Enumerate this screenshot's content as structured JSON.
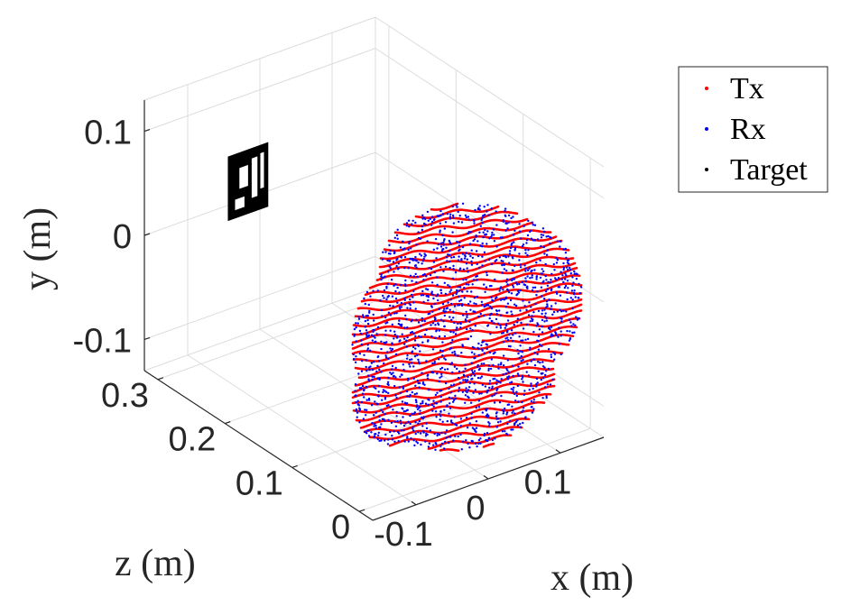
{
  "chart_data": {
    "type": "scatter",
    "dimensions": "3d",
    "xlabel": "x (m)",
    "ylabel": "y (m)",
    "zlabel": "z (m)",
    "xlim": [
      -0.16,
      0.16
    ],
    "ylim": [
      -0.13,
      0.13
    ],
    "zlim": [
      -0.02,
      0.32
    ],
    "x_ticks": [
      "-0.1",
      "0",
      "0.1"
    ],
    "y_ticks": [
      "0.1",
      "0",
      "-0.1"
    ],
    "z_ticks": [
      "0.3",
      "0.2",
      "0.1",
      "0"
    ],
    "grid": true,
    "legend_position": "outside-top-right",
    "series": [
      {
        "name": "Tx",
        "color": "#ff0000",
        "marker": "dot",
        "approx_extent": {
          "x": [
            -0.12,
            0.12
          ],
          "y": [
            -0.13,
            0.09
          ],
          "z": [
            0.0,
            0.12
          ]
        }
      },
      {
        "name": "Rx",
        "color": "#0000ff",
        "marker": "dot",
        "approx_extent": {
          "x": [
            -0.12,
            0.12
          ],
          "y": [
            -0.13,
            0.09
          ],
          "z": [
            0.0,
            0.12
          ]
        }
      },
      {
        "name": "Target",
        "color": "#000000",
        "marker": "dot",
        "approx_extent": {
          "x": [
            -0.06,
            -0.01
          ],
          "y": [
            0.0,
            0.06
          ],
          "z": [
            0.3,
            0.3
          ]
        }
      }
    ]
  }
}
